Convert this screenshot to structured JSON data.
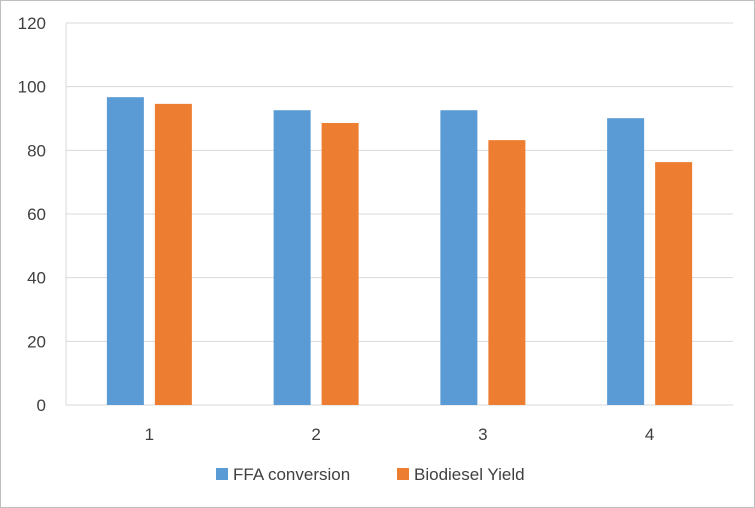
{
  "chart_data": {
    "type": "bar",
    "title": "",
    "xlabel": "",
    "ylabel": "",
    "categories": [
      "1",
      "2",
      "3",
      "4"
    ],
    "series": [
      {
        "name": "FFA conversion",
        "values": [
          96.7,
          92.6,
          92.6,
          90.1
        ],
        "color": "#5b9bd5"
      },
      {
        "name": "Biodiesel Yield",
        "values": [
          94.6,
          88.6,
          83.2,
          76.3
        ],
        "color": "#ed7d31"
      }
    ],
    "ylim": [
      0,
      120
    ],
    "yticks": [
      "0",
      "20",
      "40",
      "60",
      "80",
      "100",
      "120"
    ],
    "grid": true,
    "legend_position": "bottom",
    "colors": {
      "gridline": "#d9d9d9",
      "axis_text": "#404040",
      "border": "#bfbfbf"
    }
  }
}
